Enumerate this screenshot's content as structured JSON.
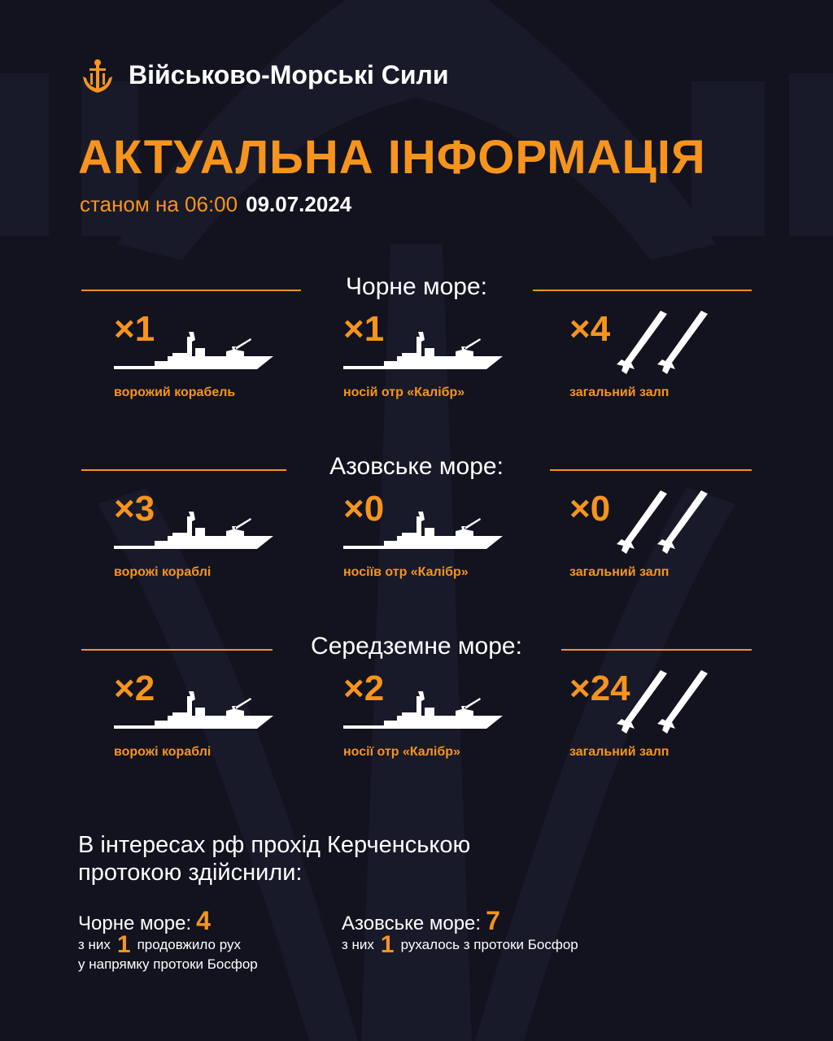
{
  "header": {
    "brand": "Військово-Морські Сили",
    "title": "АКТУАЛЬНА ІНФОРМАЦІЯ",
    "as_of_label": "станом на 06:00",
    "date": "09.07.2024"
  },
  "colors": {
    "background": "#12131f",
    "accent": "#f7941d",
    "text": "#ffffff"
  },
  "seas": [
    {
      "name": "Чорне море:",
      "items": [
        {
          "count": "×1",
          "label": "ворожий корабель",
          "icon": "warship-icon"
        },
        {
          "count": "×1",
          "label": "носій отр «Калібр»",
          "icon": "warship-icon"
        },
        {
          "count": "×4",
          "label": "загальний залп",
          "icon": "missiles-icon"
        }
      ]
    },
    {
      "name": "Азовське море:",
      "items": [
        {
          "count": "×3",
          "label": "ворожі кораблі",
          "icon": "warship-icon"
        },
        {
          "count": "×0",
          "label": "носіїв отр «Калібр»",
          "icon": "warship-icon"
        },
        {
          "count": "×0",
          "label": "загальний залп",
          "icon": "missiles-icon"
        }
      ]
    },
    {
      "name": "Середземне море:",
      "items": [
        {
          "count": "×2",
          "label": "ворожі кораблі",
          "icon": "warship-icon"
        },
        {
          "count": "×2",
          "label": "носії отр «Калібр»",
          "icon": "warship-icon"
        },
        {
          "count": "×24",
          "label": "загальний залп",
          "icon": "missiles-icon"
        }
      ]
    }
  ],
  "kerch": {
    "intro_line1": "В інтересах рф прохід Керченською",
    "intro_line2": "протокою здійснили:",
    "black": {
      "label": "Чорне море:",
      "value": "4",
      "sub_prefix": "з них",
      "sub_value": "1",
      "sub_text1": "продовжило рух",
      "sub_text2": "у напрямку протоки Босфор"
    },
    "azov": {
      "label": "Азовське море:",
      "value": "7",
      "sub_prefix": "з них",
      "sub_value": "1",
      "sub_text1": "рухалось з протоки Босфор"
    }
  }
}
